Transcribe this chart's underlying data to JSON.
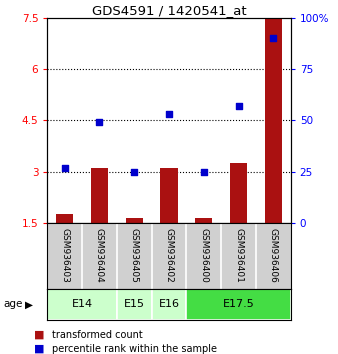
{
  "title": "GDS4591 / 1420541_at",
  "samples": [
    "GSM936403",
    "GSM936404",
    "GSM936405",
    "GSM936402",
    "GSM936400",
    "GSM936401",
    "GSM936406"
  ],
  "transformed_counts": [
    1.75,
    3.1,
    1.65,
    3.1,
    1.65,
    3.25,
    7.5
  ],
  "percentile_ranks": [
    27,
    49,
    25,
    53,
    25,
    57,
    90
  ],
  "group_boundaries": [
    {
      "start": 0,
      "end": 1,
      "label": "E14",
      "color": "#ccffcc"
    },
    {
      "start": 2,
      "end": 2,
      "label": "E15",
      "color": "#ccffcc"
    },
    {
      "start": 3,
      "end": 3,
      "label": "E16",
      "color": "#ccffcc"
    },
    {
      "start": 4,
      "end": 6,
      "label": "E17.5",
      "color": "#44dd44"
    }
  ],
  "ylim_left": [
    1.5,
    7.5
  ],
  "ylim_right": [
    0,
    100
  ],
  "yticks_left": [
    1.5,
    3.0,
    4.5,
    6.0,
    7.5
  ],
  "ytick_labels_left": [
    "1.5",
    "3",
    "4.5",
    "6",
    "7.5"
  ],
  "yticks_right": [
    0,
    25,
    50,
    75,
    100
  ],
  "ytick_labels_right": [
    "0",
    "25",
    "50",
    "75",
    "100%"
  ],
  "hlines": [
    3.0,
    4.5,
    6.0
  ],
  "bar_color": "#aa1111",
  "dot_color": "#0000cc",
  "bar_width": 0.5,
  "sample_bg": "#d0d0d0",
  "legend_red_label": "transformed count",
  "legend_blue_label": "percentile rank within the sample"
}
